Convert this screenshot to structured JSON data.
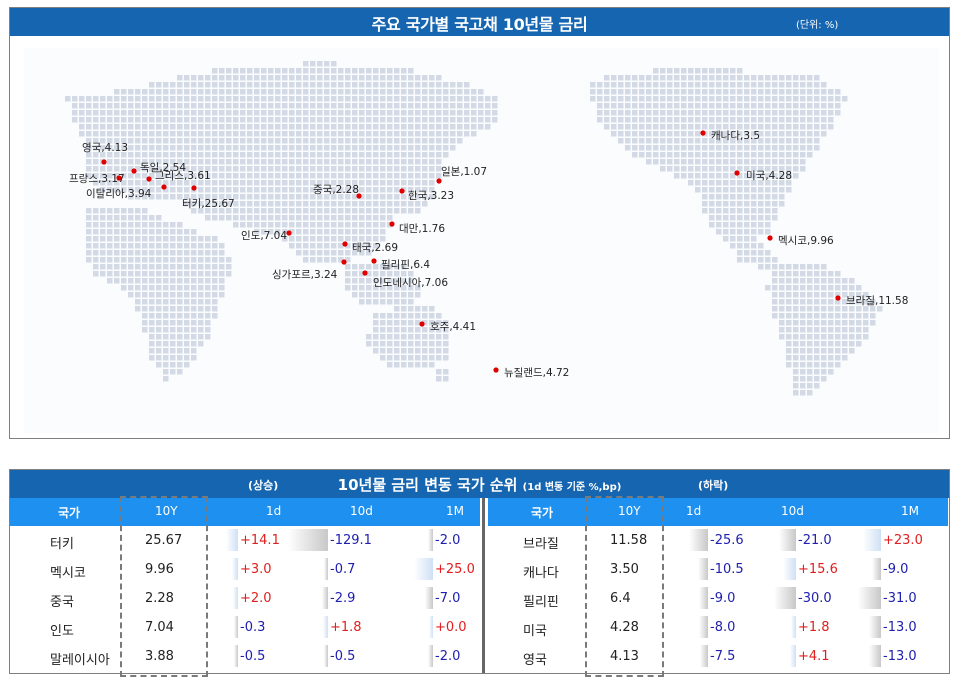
{
  "map": {
    "title": "주요 국가별 국고채 10년물 금리",
    "unit": "(단위: %)",
    "pins": [
      {
        "label": "영국,4.13"
      },
      {
        "label": "독일,2.54"
      },
      {
        "label": "프랑스,3.17"
      },
      {
        "label": "그리스,3.61"
      },
      {
        "label": "이탈리아,3.94"
      },
      {
        "label": "터키,25.67"
      },
      {
        "label": "중국,2.28"
      },
      {
        "label": "일본,1.07"
      },
      {
        "label": "한국,3.23"
      },
      {
        "label": "인도,7.04"
      },
      {
        "label": "대만,1.76"
      },
      {
        "label": "태국,2.69"
      },
      {
        "label": "필리핀,6.4"
      },
      {
        "label": "싱가포르,3.24"
      },
      {
        "label": "인도네시아,7.06"
      },
      {
        "label": "호주,4.41"
      },
      {
        "label": "뉴질랜드,4.72"
      },
      {
        "label": "캐나다,3.5"
      },
      {
        "label": "미국,4.28"
      },
      {
        "label": "멕시코,9.96"
      },
      {
        "label": "브라질,11.58"
      }
    ],
    "pin_color": "#e00000",
    "land_color": "#d3dae6"
  },
  "table": {
    "title": "10년물 금리 변동 국가 순위",
    "subtitle": "(1d 변동 기준 %,bp)",
    "up_label": "(상승)",
    "down_label": "(하락)",
    "headers": {
      "country": "국가",
      "y10": "10Y",
      "d1": "1d",
      "d10": "10d",
      "m1": "1M"
    },
    "rising": [
      {
        "country": "터키",
        "y10": "25.67",
        "d1": "+14.1",
        "d10": "-129.1",
        "m1": "-2.0"
      },
      {
        "country": "멕시코",
        "y10": "9.96",
        "d1": "+3.0",
        "d10": "-0.7",
        "m1": "+25.0"
      },
      {
        "country": "중국",
        "y10": "2.28",
        "d1": "+2.0",
        "d10": "-2.9",
        "m1": "-7.0"
      },
      {
        "country": "인도",
        "y10": "7.04",
        "d1": "-0.3",
        "d10": "+1.8",
        "m1": "+0.0"
      },
      {
        "country": "말레이시아",
        "y10": "3.88",
        "d1": "-0.5",
        "d10": "-0.5",
        "m1": "-2.0"
      }
    ],
    "falling": [
      {
        "country": "브라질",
        "y10": "11.58",
        "d1": "-25.6",
        "d10": "-21.0",
        "m1": "+23.0"
      },
      {
        "country": "캐나다",
        "y10": "3.50",
        "d1": "-10.5",
        "d10": "+15.6",
        "m1": "-9.0"
      },
      {
        "country": "필리핀",
        "y10": "6.4",
        "d1": "-9.0",
        "d10": "-30.0",
        "m1": "-31.0"
      },
      {
        "country": "미국",
        "y10": "4.28",
        "d1": "-8.0",
        "d10": "+1.8",
        "m1": "-13.0"
      },
      {
        "country": "영국",
        "y10": "4.13",
        "d1": "-7.5",
        "d10": "+4.1",
        "m1": "-13.0"
      }
    ],
    "colors": {
      "header": "#1565b0",
      "colhead": "#1e90f0",
      "positive": "#e02020",
      "negative": "#2020b0"
    }
  }
}
